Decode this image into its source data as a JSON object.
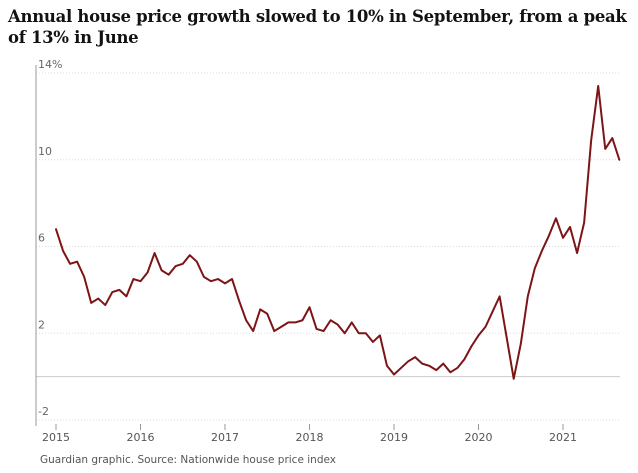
{
  "header": {
    "title": "Annual house price growth slowed to 10% in September, from a peak of 13% in June"
  },
  "footer": {
    "source": "Guardian graphic. Source: Nationwide house price index"
  },
  "chart_data": {
    "type": "line",
    "title": "Annual house price growth slowed to 10% in September, from a peak of 13% in June",
    "xlabel": "",
    "ylabel": "",
    "ylim": [
      -2,
      14
    ],
    "y_ticks": [
      {
        "value": 14,
        "label": "14%"
      },
      {
        "value": 10,
        "label": "10"
      },
      {
        "value": 6,
        "label": "6"
      },
      {
        "value": 2,
        "label": "2"
      },
      {
        "value": -2,
        "label": "-2"
      }
    ],
    "x_ticks": [
      "2015",
      "2016",
      "2017",
      "2018",
      "2019",
      "2020",
      "2021"
    ],
    "grid": true,
    "line_color": "#7d1416",
    "series": [
      {
        "name": "",
        "points": [
          [
            "2015-01",
            6.8
          ],
          [
            "2015-02",
            5.8
          ],
          [
            "2015-03",
            5.2
          ],
          [
            "2015-04",
            5.3
          ],
          [
            "2015-05",
            4.6
          ],
          [
            "2015-06",
            3.4
          ],
          [
            "2015-07",
            3.6
          ],
          [
            "2015-08",
            3.3
          ],
          [
            "2015-09",
            3.9
          ],
          [
            "2015-10",
            4.0
          ],
          [
            "2015-11",
            3.7
          ],
          [
            "2015-12",
            4.5
          ],
          [
            "2016-01",
            4.4
          ],
          [
            "2016-02",
            4.8
          ],
          [
            "2016-03",
            5.7
          ],
          [
            "2016-04",
            4.9
          ],
          [
            "2016-05",
            4.7
          ],
          [
            "2016-06",
            5.1
          ],
          [
            "2016-07",
            5.2
          ],
          [
            "2016-08",
            5.6
          ],
          [
            "2016-09",
            5.3
          ],
          [
            "2016-10",
            4.6
          ],
          [
            "2016-11",
            4.4
          ],
          [
            "2016-12",
            4.5
          ],
          [
            "2017-01",
            4.3
          ],
          [
            "2017-02",
            4.5
          ],
          [
            "2017-03",
            3.5
          ],
          [
            "2017-04",
            2.6
          ],
          [
            "2017-05",
            2.1
          ],
          [
            "2017-06",
            3.1
          ],
          [
            "2017-07",
            2.9
          ],
          [
            "2017-08",
            2.1
          ],
          [
            "2017-09",
            2.3
          ],
          [
            "2017-10",
            2.5
          ],
          [
            "2017-11",
            2.5
          ],
          [
            "2017-12",
            2.6
          ],
          [
            "2018-01",
            3.2
          ],
          [
            "2018-02",
            2.2
          ],
          [
            "2018-03",
            2.1
          ],
          [
            "2018-04",
            2.6
          ],
          [
            "2018-05",
            2.4
          ],
          [
            "2018-06",
            2.0
          ],
          [
            "2018-07",
            2.5
          ],
          [
            "2018-08",
            2.0
          ],
          [
            "2018-09",
            2.0
          ],
          [
            "2018-10",
            1.6
          ],
          [
            "2018-11",
            1.9
          ],
          [
            "2018-12",
            0.5
          ],
          [
            "2019-01",
            0.1
          ],
          [
            "2019-02",
            0.4
          ],
          [
            "2019-03",
            0.7
          ],
          [
            "2019-04",
            0.9
          ],
          [
            "2019-05",
            0.6
          ],
          [
            "2019-06",
            0.5
          ],
          [
            "2019-07",
            0.3
          ],
          [
            "2019-08",
            0.6
          ],
          [
            "2019-09",
            0.2
          ],
          [
            "2019-10",
            0.4
          ],
          [
            "2019-11",
            0.8
          ],
          [
            "2019-12",
            1.4
          ],
          [
            "2020-01",
            1.9
          ],
          [
            "2020-02",
            2.3
          ],
          [
            "2020-03",
            3.0
          ],
          [
            "2020-04",
            3.7
          ],
          [
            "2020-05",
            1.8
          ],
          [
            "2020-06",
            -0.1
          ],
          [
            "2020-07",
            1.5
          ],
          [
            "2020-08",
            3.7
          ],
          [
            "2020-09",
            5.0
          ],
          [
            "2020-10",
            5.8
          ],
          [
            "2020-11",
            6.5
          ],
          [
            "2020-12",
            7.3
          ],
          [
            "2021-01",
            6.4
          ],
          [
            "2021-02",
            6.9
          ],
          [
            "2021-03",
            5.7
          ],
          [
            "2021-04",
            7.1
          ],
          [
            "2021-05",
            10.9
          ],
          [
            "2021-06",
            13.4
          ],
          [
            "2021-07",
            10.5
          ],
          [
            "2021-08",
            11.0
          ],
          [
            "2021-09",
            10.0
          ]
        ]
      }
    ]
  }
}
